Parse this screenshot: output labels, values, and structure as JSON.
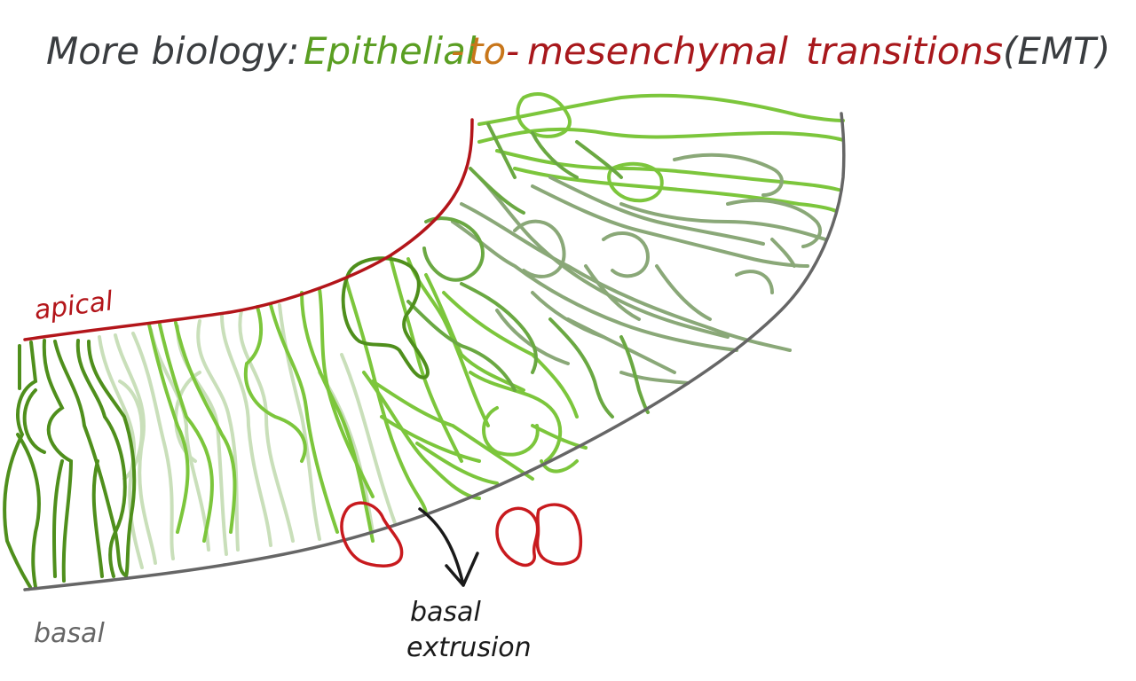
{
  "title": {
    "prefix": "More biology:",
    "part_epithelial": "Epithelial",
    "dash_1": "-",
    "part_to": "to",
    "dash_2": "-",
    "part_mesenchymal": "mesenchymal",
    "part_transitions": "transitions",
    "part_abbrev": "(EMT)"
  },
  "labels": {
    "apical": "apical",
    "basal": "basal",
    "extrusion_line1": "basal",
    "extrusion_line2": "extrusion"
  },
  "colors": {
    "title_dark": "#3a3d40",
    "epithelial_green": "#5a9e22",
    "to_orange": "#c8761a",
    "mesenchymal_red": "#a8181c",
    "apical_red": "#b3151a",
    "basal_gray": "#666666",
    "arrow_black": "#1a1a1a",
    "cell_dark_green": "#4f8f1c",
    "cell_light_green": "#7cc63c",
    "cell_pale_green": "#c9dfba",
    "cell_olive": "#8aa878",
    "extruded_cell_red": "#c81a1e"
  }
}
